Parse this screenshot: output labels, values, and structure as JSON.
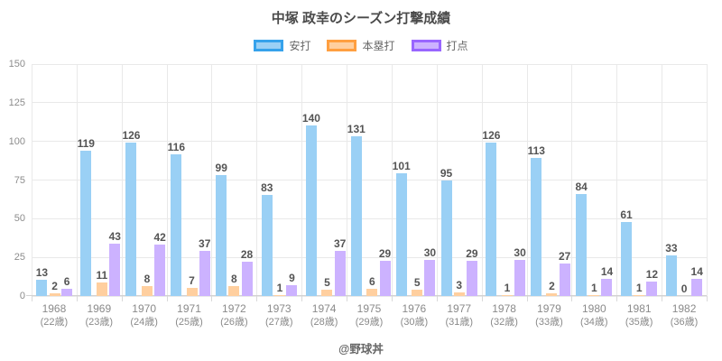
{
  "title": "中塚 政幸のシーズン打撃成績",
  "attribution": "@野球丼",
  "chart_data": {
    "type": "bar",
    "title": "中塚 政幸のシーズン打撃成績",
    "categories": [
      "1968",
      "1969",
      "1970",
      "1971",
      "1972",
      "1973",
      "1974",
      "1975",
      "1976",
      "1977",
      "1978",
      "1979",
      "1980",
      "1981",
      "1982"
    ],
    "category_sublabels": [
      "(22歳)",
      "(23歳)",
      "(24歳)",
      "(25歳)",
      "(26歳)",
      "(27歳)",
      "(28歳)",
      "(29歳)",
      "(30歳)",
      "(31歳)",
      "(32歳)",
      "(33歳)",
      "(34歳)",
      "(35歳)",
      "(36歳)"
    ],
    "series": [
      {
        "name": "安打",
        "fill": "#9AD0F5",
        "border": "#36A2EB",
        "values": [
          13,
          119,
          126,
          116,
          99,
          83,
          140,
          131,
          101,
          95,
          126,
          113,
          84,
          61,
          33
        ]
      },
      {
        "name": "本塁打",
        "fill": "#FFCF9F",
        "border": "#FF9F40",
        "values": [
          2,
          11,
          8,
          7,
          8,
          1,
          5,
          6,
          5,
          3,
          1,
          2,
          1,
          1,
          0
        ]
      },
      {
        "name": "打点",
        "fill": "#CCB2FF",
        "border": "#9966FF",
        "values": [
          6,
          43,
          42,
          37,
          28,
          9,
          37,
          29,
          30,
          29,
          30,
          27,
          14,
          12,
          14
        ]
      }
    ],
    "ylim": [
      0,
      150
    ],
    "yticks": [
      0,
      25,
      50,
      75,
      100,
      125,
      150
    ],
    "grid": true,
    "legend_position": "top",
    "value_labels": true
  }
}
